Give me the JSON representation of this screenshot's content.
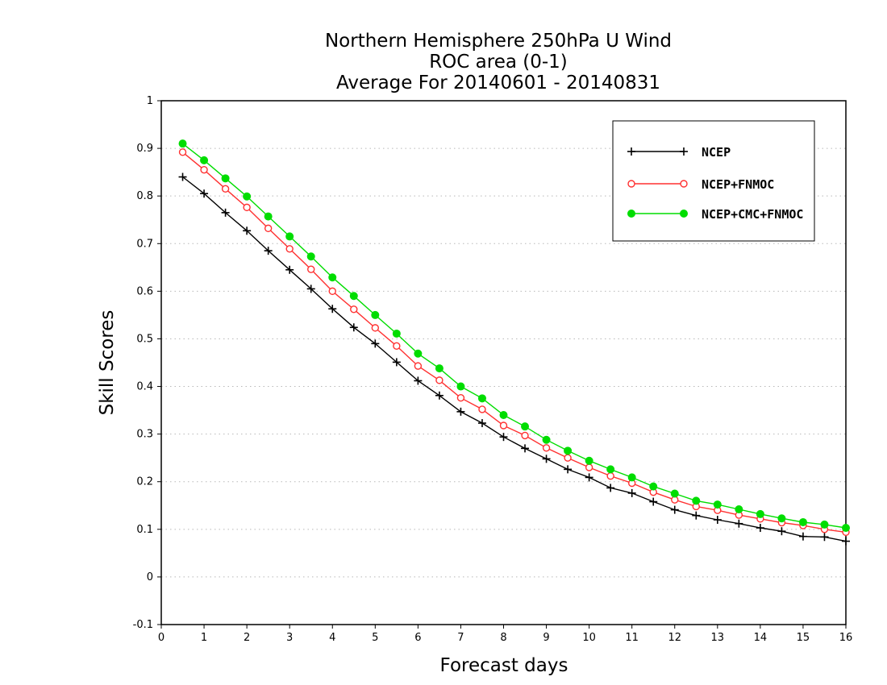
{
  "chart_data": {
    "type": "line",
    "title": [
      "Northern Hemisphere 250hPa U Wind",
      "ROC area (0-1)",
      "Average For 20140601 - 20140831"
    ],
    "xlabel": "Forecast days",
    "ylabel": "Skill Scores",
    "xlim": [
      0,
      16
    ],
    "ylim": [
      -0.1,
      1
    ],
    "xticks": [
      0,
      1,
      2,
      3,
      4,
      5,
      6,
      7,
      8,
      9,
      10,
      11,
      12,
      13,
      14,
      15,
      16
    ],
    "yticks": [
      -0.1,
      0,
      0.1,
      0.2,
      0.3,
      0.4,
      0.5,
      0.6,
      0.7,
      0.8,
      0.9,
      1
    ],
    "grid": true,
    "legend_position": "top-right",
    "x": [
      0.5,
      1,
      1.5,
      2,
      2.5,
      3,
      3.5,
      4,
      4.5,
      5,
      5.5,
      6,
      6.5,
      7,
      7.5,
      8,
      8.5,
      9,
      9.5,
      10,
      10.5,
      11,
      11.5,
      12,
      12.5,
      13,
      13.5,
      14,
      14.5,
      15,
      15.5,
      16
    ],
    "series": [
      {
        "name": "NCEP",
        "color": "#000000",
        "marker": "plus",
        "values": [
          0.84,
          0.805,
          0.765,
          0.727,
          0.685,
          0.645,
          0.605,
          0.563,
          0.524,
          0.49,
          0.451,
          0.412,
          0.381,
          0.347,
          0.323,
          0.294,
          0.27,
          0.248,
          0.226,
          0.209,
          0.187,
          0.176,
          0.158,
          0.141,
          0.129,
          0.12,
          0.112,
          0.103,
          0.096,
          0.085,
          0.084,
          0.075
        ]
      },
      {
        "name": "NCEP+FNMOC",
        "color": "#ff3030",
        "marker": "open-circle",
        "values": [
          0.892,
          0.855,
          0.815,
          0.776,
          0.732,
          0.689,
          0.646,
          0.6,
          0.562,
          0.523,
          0.485,
          0.443,
          0.413,
          0.376,
          0.352,
          0.318,
          0.297,
          0.271,
          0.25,
          0.23,
          0.212,
          0.197,
          0.178,
          0.162,
          0.148,
          0.14,
          0.13,
          0.122,
          0.114,
          0.108,
          0.1,
          0.094
        ]
      },
      {
        "name": "NCEP+CMC+FNMOC",
        "color": "#00dd00",
        "marker": "filled-circle",
        "values": [
          0.91,
          0.875,
          0.837,
          0.799,
          0.757,
          0.715,
          0.673,
          0.629,
          0.59,
          0.55,
          0.511,
          0.469,
          0.438,
          0.4,
          0.375,
          0.34,
          0.316,
          0.288,
          0.265,
          0.244,
          0.226,
          0.209,
          0.19,
          0.175,
          0.16,
          0.152,
          0.142,
          0.132,
          0.123,
          0.115,
          0.11,
          0.103
        ]
      }
    ]
  }
}
